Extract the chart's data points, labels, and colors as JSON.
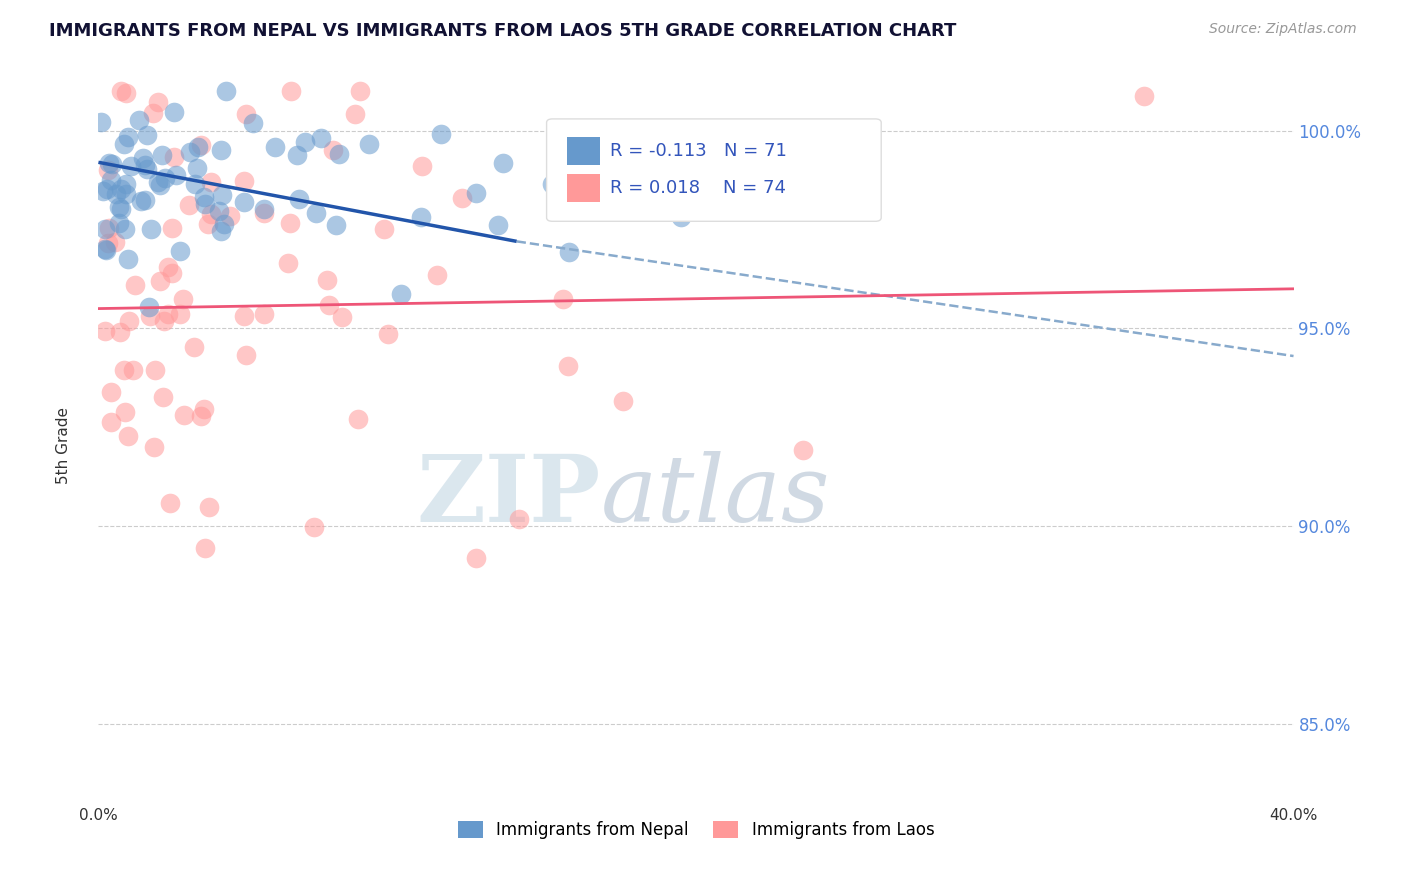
{
  "title": "IMMIGRANTS FROM NEPAL VS IMMIGRANTS FROM LAOS 5TH GRADE CORRELATION CHART",
  "source": "Source: ZipAtlas.com",
  "ylabel": "5th Grade",
  "xlim": [
    0.0,
    40.0
  ],
  "ylim": [
    83.0,
    101.5
  ],
  "yticks": [
    85.0,
    90.0,
    95.0,
    100.0
  ],
  "ytick_labels": [
    "85.0%",
    "90.0%",
    "95.0%",
    "100.0%"
  ],
  "nepal_R": -0.113,
  "nepal_N": 71,
  "laos_R": 0.018,
  "laos_N": 74,
  "nepal_color": "#6699CC",
  "laos_color": "#FF9999",
  "nepal_line_color": "#2255AA",
  "laos_line_color": "#EE5577",
  "dashed_line_color": "#88AACC",
  "watermark_zip": "ZIP",
  "watermark_atlas": "atlas",
  "nepal_line_y0": 99.2,
  "nepal_line_y1": 97.2,
  "nepal_dash_x0": 14.0,
  "nepal_dash_x1": 40.0,
  "nepal_dash_y0": 97.2,
  "nepal_dash_y1": 94.3,
  "laos_line_y0": 95.5,
  "laos_line_y1": 96.0,
  "nepal_solid_x0": 0.0,
  "nepal_solid_x1": 14.0
}
